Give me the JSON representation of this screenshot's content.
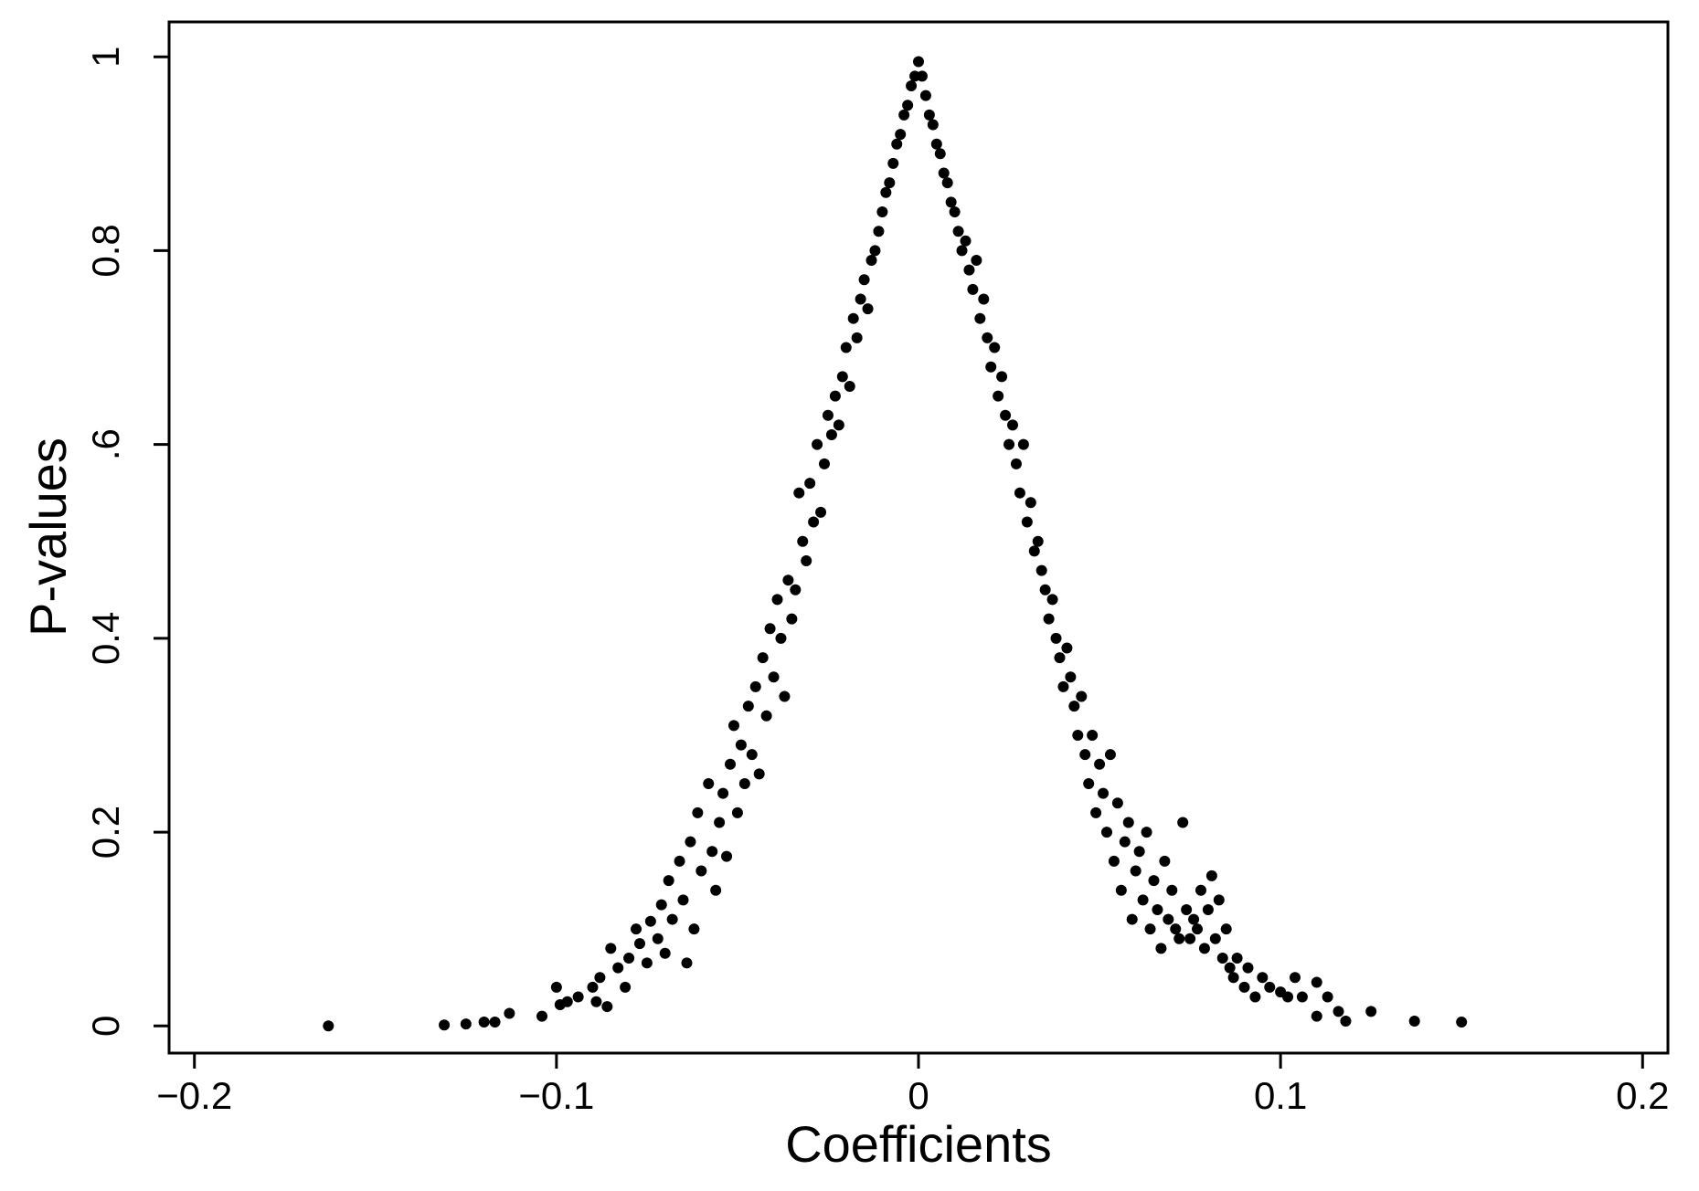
{
  "chart_data": {
    "type": "scatter",
    "x_label": "Coefficients",
    "y_label": "P-values",
    "xlim": [
      -0.207,
      0.207
    ],
    "ylim": [
      -0.028,
      1.036
    ],
    "xticks": [
      {
        "value": -0.2,
        "label": "−0.2"
      },
      {
        "value": -0.1,
        "label": "−0.1"
      },
      0,
      0.1,
      0.2
    ],
    "yticks": [
      0,
      0.2,
      0.4,
      {
        "value": 0.6,
        "label": ".6"
      },
      0.8,
      1
    ],
    "color": "#000000",
    "x": [
      -0.163,
      -0.131,
      -0.125,
      -0.12,
      -0.117,
      -0.113,
      -0.104,
      -0.1,
      -0.099,
      -0.097,
      -0.094,
      -0.09,
      -0.089,
      -0.088,
      -0.086,
      -0.085,
      -0.083,
      -0.081,
      -0.08,
      -0.078,
      -0.077,
      -0.075,
      -0.074,
      -0.072,
      -0.071,
      -0.07,
      -0.069,
      -0.068,
      -0.066,
      -0.065,
      -0.064,
      -0.063,
      -0.062,
      -0.061,
      -0.06,
      -0.058,
      -0.057,
      -0.056,
      -0.055,
      -0.054,
      -0.053,
      -0.052,
      -0.051,
      -0.05,
      -0.049,
      -0.048,
      -0.047,
      -0.046,
      -0.045,
      -0.044,
      -0.043,
      -0.042,
      -0.041,
      -0.04,
      -0.039,
      -0.038,
      -0.037,
      -0.036,
      -0.035,
      -0.034,
      -0.033,
      -0.032,
      -0.031,
      -0.03,
      -0.029,
      -0.028,
      -0.027,
      -0.026,
      -0.025,
      -0.024,
      -0.023,
      -0.022,
      -0.021,
      -0.02,
      -0.019,
      -0.018,
      -0.017,
      -0.016,
      -0.015,
      -0.014,
      -0.013,
      -0.012,
      -0.011,
      -0.01,
      -0.009,
      -0.008,
      -0.007,
      -0.006,
      -0.005,
      -0.004,
      -0.003,
      -0.002,
      -0.001,
      0,
      0.001,
      0.002,
      0.003,
      0.004,
      0.005,
      0.006,
      0.007,
      0.008,
      0.009,
      0.01,
      0.011,
      0.012,
      0.013,
      0.014,
      0.015,
      0.016,
      0.017,
      0.018,
      0.019,
      0.02,
      0.021,
      0.022,
      0.023,
      0.024,
      0.025,
      0.026,
      0.027,
      0.028,
      0.029,
      0.03,
      0.031,
      0.032,
      0.033,
      0.034,
      0.035,
      0.036,
      0.037,
      0.038,
      0.039,
      0.04,
      0.041,
      0.042,
      0.043,
      0.044,
      0.045,
      0.046,
      0.047,
      0.048,
      0.049,
      0.05,
      0.051,
      0.052,
      0.053,
      0.054,
      0.055,
      0.056,
      0.057,
      0.058,
      0.059,
      0.06,
      0.061,
      0.062,
      0.063,
      0.064,
      0.065,
      0.066,
      0.067,
      0.068,
      0.069,
      0.07,
      0.071,
      0.072,
      0.073,
      0.074,
      0.075,
      0.076,
      0.077,
      0.078,
      0.079,
      0.08,
      0.081,
      0.082,
      0.083,
      0.084,
      0.085,
      0.086,
      0.087,
      0.088,
      0.09,
      0.091,
      0.093,
      0.095,
      0.097,
      0.1,
      0.102,
      0.104,
      0.106,
      0.11,
      0.11,
      0.113,
      0.116,
      0.118,
      0.125,
      0.137,
      0.15
    ],
    "y": [
      0,
      0.001,
      0.002,
      0.004,
      0.004,
      0.013,
      0.01,
      0.04,
      0.022,
      0.025,
      0.03,
      0.04,
      0.025,
      0.05,
      0.02,
      0.08,
      0.06,
      0.04,
      0.07,
      0.1,
      0.085,
      0.065,
      0.108,
      0.09,
      0.125,
      0.075,
      0.15,
      0.11,
      0.17,
      0.13,
      0.065,
      0.19,
      0.1,
      0.22,
      0.16,
      0.25,
      0.18,
      0.14,
      0.21,
      0.24,
      0.175,
      0.27,
      0.31,
      0.22,
      0.29,
      0.25,
      0.33,
      0.28,
      0.35,
      0.26,
      0.38,
      0.32,
      0.41,
      0.36,
      0.44,
      0.4,
      0.34,
      0.46,
      0.42,
      0.45,
      0.55,
      0.5,
      0.48,
      0.56,
      0.52,
      0.6,
      0.53,
      0.58,
      0.63,
      0.61,
      0.65,
      0.62,
      0.67,
      0.7,
      0.66,
      0.73,
      0.71,
      0.75,
      0.77,
      0.74,
      0.79,
      0.8,
      0.82,
      0.84,
      0.86,
      0.87,
      0.89,
      0.91,
      0.92,
      0.94,
      0.95,
      0.97,
      0.98,
      0.995,
      0.98,
      0.96,
      0.94,
      0.93,
      0.91,
      0.9,
      0.88,
      0.87,
      0.85,
      0.84,
      0.82,
      0.8,
      0.81,
      0.78,
      0.76,
      0.79,
      0.73,
      0.75,
      0.71,
      0.68,
      0.7,
      0.65,
      0.67,
      0.63,
      0.6,
      0.62,
      0.58,
      0.55,
      0.6,
      0.52,
      0.54,
      0.49,
      0.5,
      0.47,
      0.45,
      0.42,
      0.44,
      0.4,
      0.38,
      0.35,
      0.39,
      0.36,
      0.33,
      0.3,
      0.34,
      0.28,
      0.25,
      0.3,
      0.22,
      0.27,
      0.24,
      0.2,
      0.28,
      0.17,
      0.23,
      0.14,
      0.19,
      0.21,
      0.11,
      0.16,
      0.18,
      0.13,
      0.2,
      0.1,
      0.15,
      0.12,
      0.08,
      0.17,
      0.11,
      0.14,
      0.1,
      0.09,
      0.21,
      0.12,
      0.09,
      0.11,
      0.1,
      0.14,
      0.08,
      0.12,
      0.155,
      0.09,
      0.13,
      0.07,
      0.1,
      0.06,
      0.05,
      0.07,
      0.04,
      0.06,
      0.03,
      0.05,
      0.04,
      0.035,
      0.03,
      0.05,
      0.03,
      0.045,
      0.01,
      0.03,
      0.015,
      0.005,
      0.015,
      0.005,
      0.004
    ]
  }
}
